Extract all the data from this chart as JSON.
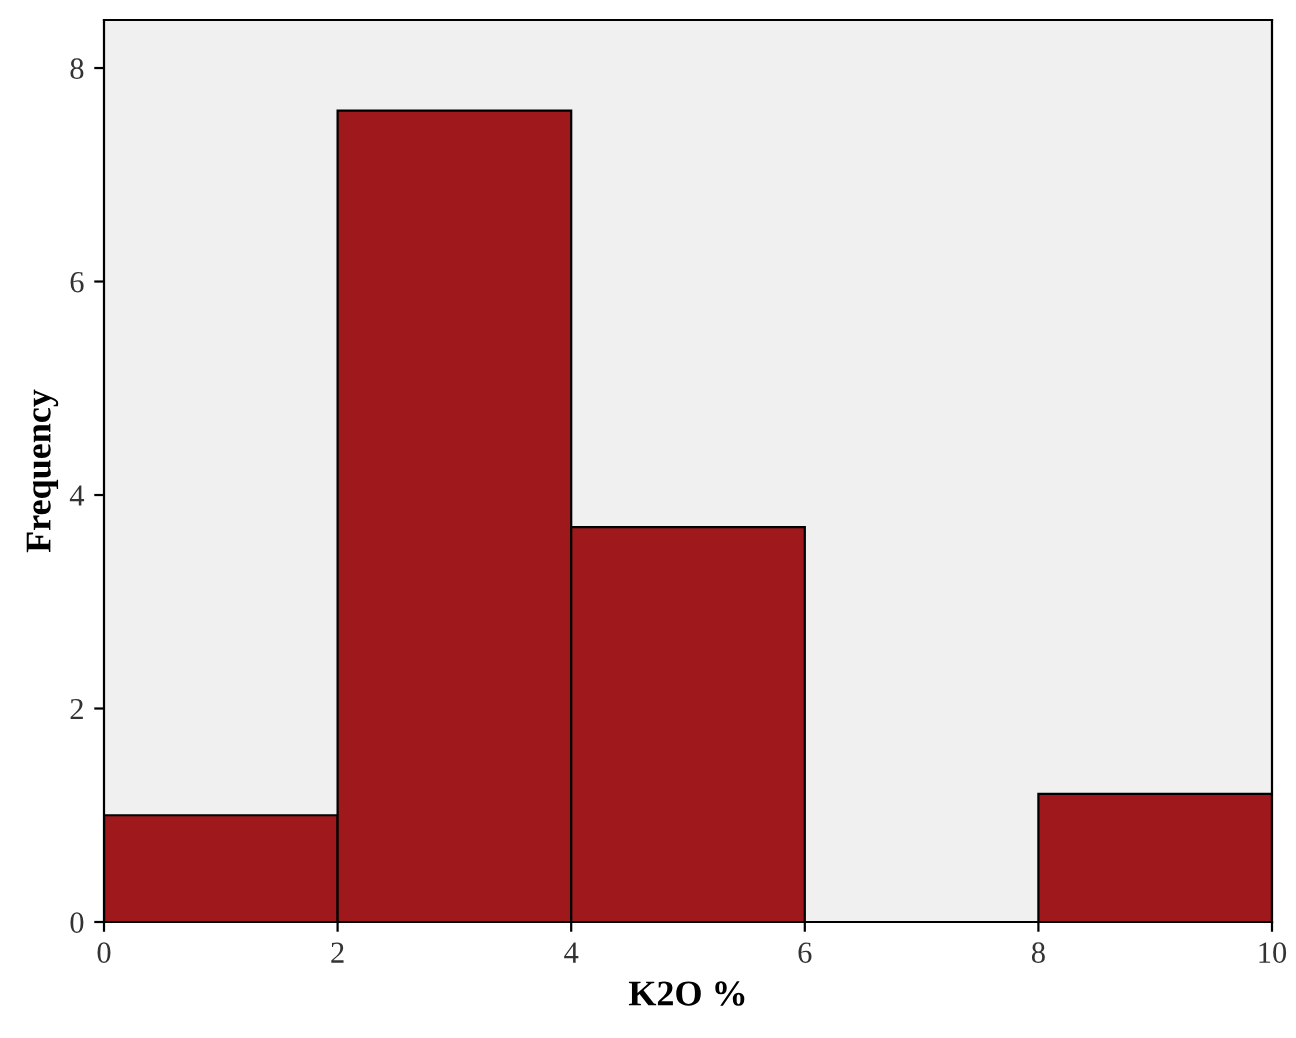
{
  "chart_data": {
    "type": "histogram",
    "xlabel": "K2O %",
    "ylabel": "Frequency",
    "bins": [
      0,
      2,
      4,
      6,
      8,
      10
    ],
    "values": [
      1,
      7.6,
      3.7,
      0,
      1.2
    ],
    "color": "#9e181c",
    "xlim": [
      0,
      10
    ],
    "xticks": [
      0,
      2,
      4,
      6,
      8,
      10
    ],
    "ylim": [
      0,
      8.45
    ],
    "yticks": [
      0,
      2,
      4,
      6,
      8
    ],
    "grid": false
  }
}
